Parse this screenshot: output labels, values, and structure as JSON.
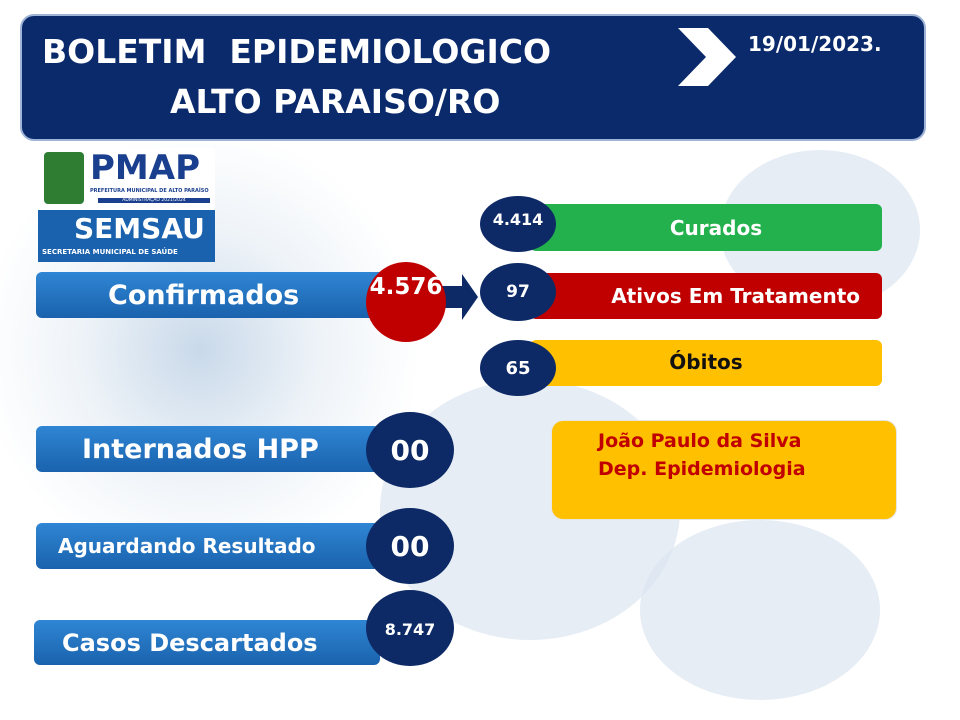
{
  "header": {
    "title_line1": "BOLETIM  EPIDEMIOLOGICO",
    "title_line2": "ALTO PARAISO/RO",
    "date": "19/01/2023."
  },
  "logo": {
    "pmap": "PMAP",
    "pmap_sub": "PREFEITURA MUNICIPAL DE ALTO PARAÍSO",
    "pmap_admin": "ADMINISTRAÇÃO 2021/2024",
    "semsau": "SEMSAU",
    "semsau_sub": "SECRETARIA MUNICIPAL DE SAÚDE"
  },
  "stats": {
    "confirmados": {
      "label": "Confirmados",
      "value": "4.576"
    },
    "curados": {
      "label": "Curados",
      "value": "4.414"
    },
    "ativos": {
      "label": "Ativos Em Tratamento",
      "value": "97"
    },
    "obitos": {
      "label": "Óbitos",
      "value": "65"
    },
    "internados": {
      "label": "Internados HPP",
      "value": "00"
    },
    "aguardando": {
      "label": "Aguardando Resultado",
      "value": "00"
    },
    "descartados": {
      "label": "Casos Descartados",
      "value": "8.747"
    }
  },
  "signature": {
    "name": "João Paulo da Silva",
    "department": "Dep. Epidemiologia"
  }
}
